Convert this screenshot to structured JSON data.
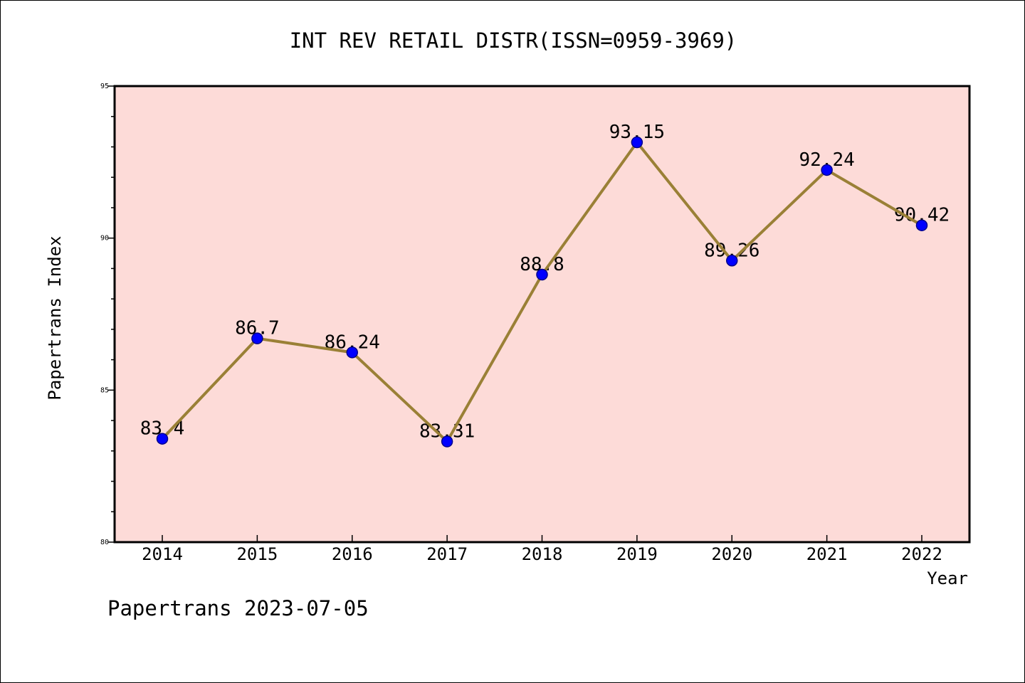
{
  "footer": {
    "text": "Papertrans 2023-07-05"
  },
  "chart_data": {
    "type": "line",
    "title": "INT REV RETAIL DISTR(ISSN=0959-3969)",
    "xlabel": "Year",
    "ylabel": "Papertrans Index",
    "categories": [
      "2014",
      "2015",
      "2016",
      "2017",
      "2018",
      "2019",
      "2020",
      "2021",
      "2022"
    ],
    "values": [
      83.4,
      86.7,
      86.24,
      83.31,
      88.8,
      93.15,
      89.26,
      92.24,
      90.42
    ],
    "data_labels": [
      "83.4",
      "86.7",
      "86.24",
      "83.31",
      "88.8",
      "93.15",
      "89.26",
      "92.24",
      "90.42"
    ],
    "ylim": [
      80,
      95
    ],
    "yticks": [
      "80",
      "85",
      "90",
      "95"
    ],
    "grid": false,
    "legend": "none",
    "colors": {
      "plot_bg": "#fddbd8",
      "line": "#9a8036",
      "marker": "#0000ff",
      "marker_edge": "#00008b"
    }
  }
}
